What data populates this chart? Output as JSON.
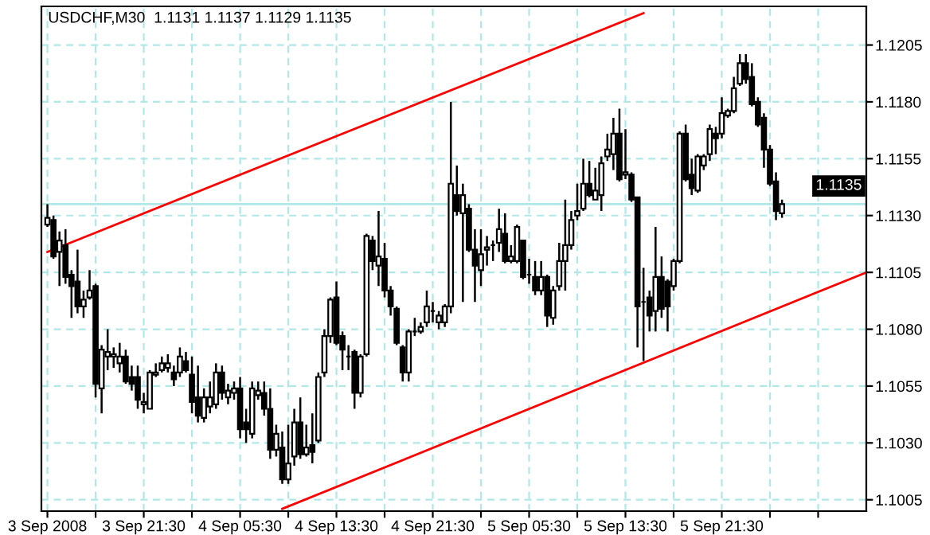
{
  "chart_data": {
    "type": "candlestick",
    "title": "USDCHF,M30  1.1131 1.1137 1.1129 1.1135",
    "x": [
      "2008-09-03T13:30",
      "2008-09-03T14:00",
      "2008-09-03T14:30",
      "2008-09-03T15:00",
      "2008-09-03T15:30",
      "2008-09-03T16:00",
      "2008-09-03T16:30",
      "2008-09-03T17:00",
      "2008-09-03T17:30",
      "2008-09-03T18:00",
      "2008-09-03T18:30",
      "2008-09-03T19:00",
      "2008-09-03T19:30",
      "2008-09-03T20:00",
      "2008-09-03T20:30",
      "2008-09-03T21:00",
      "2008-09-03T21:30",
      "2008-09-03T22:00",
      "2008-09-03T22:30",
      "2008-09-03T23:00",
      "2008-09-03T23:30",
      "2008-09-04T00:00",
      "2008-09-04T00:30",
      "2008-09-04T01:00",
      "2008-09-04T01:30",
      "2008-09-04T02:00",
      "2008-09-04T02:30",
      "2008-09-04T03:00",
      "2008-09-04T03:30",
      "2008-09-04T04:00",
      "2008-09-04T04:30",
      "2008-09-04T05:00",
      "2008-09-04T05:30",
      "2008-09-04T06:00",
      "2008-09-04T06:30",
      "2008-09-04T07:00",
      "2008-09-04T07:30",
      "2008-09-04T08:00",
      "2008-09-04T08:30",
      "2008-09-04T09:00",
      "2008-09-04T09:30",
      "2008-09-04T10:00",
      "2008-09-04T10:30",
      "2008-09-04T11:00",
      "2008-09-04T11:30",
      "2008-09-04T12:00",
      "2008-09-04T12:30",
      "2008-09-04T13:00",
      "2008-09-04T13:30",
      "2008-09-04T14:00",
      "2008-09-04T14:30",
      "2008-09-04T15:00",
      "2008-09-04T15:30",
      "2008-09-04T16:00",
      "2008-09-04T16:30",
      "2008-09-04T17:00",
      "2008-09-04T17:30",
      "2008-09-04T18:00",
      "2008-09-04T18:30",
      "2008-09-04T19:00",
      "2008-09-04T19:30",
      "2008-09-04T20:00",
      "2008-09-04T20:30",
      "2008-09-04T21:00",
      "2008-09-04T21:30",
      "2008-09-04T22:00",
      "2008-09-04T22:30",
      "2008-09-04T23:00",
      "2008-09-04T23:30",
      "2008-09-05T00:00",
      "2008-09-05T00:30",
      "2008-09-05T01:00",
      "2008-09-05T01:30",
      "2008-09-05T02:00",
      "2008-09-05T02:30",
      "2008-09-05T03:00",
      "2008-09-05T03:30",
      "2008-09-05T04:00",
      "2008-09-05T04:30",
      "2008-09-05T05:00",
      "2008-09-05T05:30",
      "2008-09-05T06:00",
      "2008-09-05T06:30",
      "2008-09-05T07:00",
      "2008-09-05T07:30",
      "2008-09-05T08:00",
      "2008-09-05T08:30",
      "2008-09-05T09:00",
      "2008-09-05T09:30",
      "2008-09-05T10:00",
      "2008-09-05T10:30",
      "2008-09-05T11:00",
      "2008-09-05T11:30",
      "2008-09-05T12:00",
      "2008-09-05T12:30",
      "2008-09-05T13:00",
      "2008-09-05T13:30",
      "2008-09-05T14:00",
      "2008-09-05T14:30",
      "2008-09-05T15:00",
      "2008-09-05T15:30",
      "2008-09-05T16:00",
      "2008-09-05T16:30",
      "2008-09-05T17:00",
      "2008-09-05T17:30",
      "2008-09-05T18:00",
      "2008-09-05T18:30",
      "2008-09-05T19:00",
      "2008-09-05T19:30",
      "2008-09-05T20:00",
      "2008-09-05T20:30",
      "2008-09-05T21:00",
      "2008-09-05T21:30",
      "2008-09-05T22:00",
      "2008-09-05T22:30",
      "2008-09-05T23:00",
      "2008-09-05T23:30",
      "2008-09-06T00:00",
      "2008-09-06T00:30",
      "2008-09-06T01:00",
      "2008-09-06T01:30",
      "2008-09-06T02:00",
      "2008-09-06T02:30"
    ],
    "ohlc": [
      [
        1.1126,
        1.1135,
        1.1125,
        1.1129
      ],
      [
        1.1128,
        1.113,
        1.1111,
        1.1112
      ],
      [
        1.1114,
        1.1123,
        1.1099,
        1.1119
      ],
      [
        1.1117,
        1.1124,
        1.11,
        1.1103
      ],
      [
        1.1104,
        1.1106,
        1.1085,
        1.1099
      ],
      [
        1.1101,
        1.1115,
        1.1087,
        1.109
      ],
      [
        1.109,
        1.1097,
        1.1085,
        1.1093
      ],
      [
        1.1094,
        1.1106,
        1.1093,
        1.1097
      ],
      [
        1.1099,
        1.11,
        1.105,
        1.1056
      ],
      [
        1.1054,
        1.1073,
        1.1043,
        1.1071
      ],
      [
        1.1068,
        1.108,
        1.1062,
        1.107
      ],
      [
        1.1068,
        1.1072,
        1.1063,
        1.1069
      ],
      [
        1.1065,
        1.1074,
        1.1061,
        1.1068
      ],
      [
        1.1068,
        1.1071,
        1.1056,
        1.1057
      ],
      [
        1.1059,
        1.1064,
        1.1053,
        1.1056
      ],
      [
        1.1059,
        1.1064,
        1.1045,
        1.1049
      ],
      [
        1.1047,
        1.1052,
        1.1043,
        1.1048
      ],
      [
        1.1045,
        1.1062,
        1.1045,
        1.1061
      ],
      [
        1.106,
        1.1065,
        1.1059,
        1.1061
      ],
      [
        1.1062,
        1.1068,
        1.1061,
        1.1065
      ],
      [
        1.1063,
        1.1069,
        1.1061,
        1.1065
      ],
      [
        1.1061,
        1.1064,
        1.1055,
        1.1058
      ],
      [
        1.1061,
        1.1072,
        1.1059,
        1.1068
      ],
      [
        1.1066,
        1.107,
        1.1061,
        1.1062
      ],
      [
        1.106,
        1.1068,
        1.1043,
        1.1048
      ],
      [
        1.105,
        1.1064,
        1.1039,
        1.1042
      ],
      [
        1.1041,
        1.1054,
        1.1039,
        1.105
      ],
      [
        1.1046,
        1.1057,
        1.1043,
        1.105
      ],
      [
        1.1047,
        1.1065,
        1.1045,
        1.1061
      ],
      [
        1.1061,
        1.1064,
        1.1049,
        1.1052
      ],
      [
        1.105,
        1.1056,
        1.1047,
        1.1053
      ],
      [
        1.1052,
        1.1057,
        1.1049,
        1.1054
      ],
      [
        1.1054,
        1.1059,
        1.1032,
        1.1036
      ],
      [
        1.1039,
        1.1045,
        1.103,
        1.1036
      ],
      [
        1.1034,
        1.1057,
        1.1032,
        1.1054
      ],
      [
        1.1051,
        1.1057,
        1.1049,
        1.1053
      ],
      [
        1.1052,
        1.1057,
        1.1042,
        1.1045
      ],
      [
        1.1045,
        1.1054,
        1.1023,
        1.1027
      ],
      [
        1.1027,
        1.1038,
        1.1024,
        1.1034
      ],
      [
        1.1028,
        1.1035,
        1.1012,
        1.1014
      ],
      [
        1.1014,
        1.1038,
        1.1012,
        1.1021
      ],
      [
        1.1024,
        1.1045,
        1.102,
        1.1039
      ],
      [
        1.1039,
        1.105,
        1.1023,
        1.1025
      ],
      [
        1.1025,
        1.1038,
        1.1024,
        1.1028
      ],
      [
        1.1029,
        1.1043,
        1.1021,
        1.1026
      ],
      [
        1.1031,
        1.1061,
        1.103,
        1.1059
      ],
      [
        1.1061,
        1.108,
        1.1059,
        1.1077
      ],
      [
        1.1077,
        1.1094,
        1.1074,
        1.1093
      ],
      [
        1.1094,
        1.1101,
        1.1073,
        1.1074
      ],
      [
        1.1077,
        1.1079,
        1.1062,
        1.1071
      ],
      [
        1.1068,
        1.1073,
        1.1062,
        1.1068
      ],
      [
        1.107,
        1.1071,
        1.1045,
        1.1052
      ],
      [
        1.1052,
        1.1069,
        1.105,
        1.1068
      ],
      [
        1.1069,
        1.1122,
        1.1068,
        1.1121
      ],
      [
        1.1119,
        1.1121,
        1.1106,
        1.111
      ],
      [
        1.1108,
        1.1132,
        1.1099,
        1.1112
      ],
      [
        1.1111,
        1.1118,
        1.1094,
        1.1097
      ],
      [
        1.1097,
        1.1099,
        1.1086,
        1.109
      ],
      [
        1.1089,
        1.109,
        1.1073,
        1.1074
      ],
      [
        1.1072,
        1.1073,
        1.1057,
        1.1061
      ],
      [
        1.1061,
        1.108,
        1.1057,
        1.1079
      ],
      [
        1.1079,
        1.1085,
        1.1077,
        1.1079
      ],
      [
        1.1079,
        1.1083,
        1.1078,
        1.1081
      ],
      [
        1.1083,
        1.1097,
        1.1081,
        1.109
      ],
      [
        1.1088,
        1.1092,
        1.1083,
        1.1088
      ],
      [
        1.1083,
        1.1088,
        1.108,
        1.1086
      ],
      [
        1.1083,
        1.1091,
        1.1081,
        1.109
      ],
      [
        1.109,
        1.118,
        1.1087,
        1.1144
      ],
      [
        1.1139,
        1.1152,
        1.113,
        1.1132
      ],
      [
        1.1131,
        1.1144,
        1.1092,
        1.1139
      ],
      [
        1.1133,
        1.1135,
        1.1114,
        1.1115
      ],
      [
        1.1115,
        1.1124,
        1.1092,
        1.1108
      ],
      [
        1.1106,
        1.1124,
        1.1099,
        1.1113
      ],
      [
        1.1115,
        1.1121,
        1.1108,
        1.1116
      ],
      [
        1.1117,
        1.1119,
        1.111,
        1.1117
      ],
      [
        1.1118,
        1.1133,
        1.1114,
        1.1124
      ],
      [
        1.1122,
        1.1131,
        1.1109,
        1.111
      ],
      [
        1.111,
        1.1117,
        1.1109,
        1.1112
      ],
      [
        1.111,
        1.1126,
        1.1109,
        1.1125
      ],
      [
        1.1119,
        1.1119,
        1.1102,
        1.1103
      ],
      [
        1.1104,
        1.1111,
        1.11,
        1.1104
      ],
      [
        1.1103,
        1.111,
        1.1095,
        1.1097
      ],
      [
        1.1097,
        1.111,
        1.1095,
        1.1103
      ],
      [
        1.1103,
        1.1104,
        1.1081,
        1.1086
      ],
      [
        1.1085,
        1.1099,
        1.1082,
        1.1097
      ],
      [
        1.1099,
        1.1118,
        1.1097,
        1.111
      ],
      [
        1.111,
        1.1137,
        1.1097,
        1.1117
      ],
      [
        1.1117,
        1.1132,
        1.1115,
        1.1128
      ],
      [
        1.113,
        1.1144,
        1.1128,
        1.1132
      ],
      [
        1.1133,
        1.1155,
        1.1132,
        1.1144
      ],
      [
        1.1144,
        1.1154,
        1.1138,
        1.1139
      ],
      [
        1.1137,
        1.1151,
        1.1137,
        1.1141
      ],
      [
        1.1139,
        1.1156,
        1.1132,
        1.1153
      ],
      [
        1.1156,
        1.1166,
        1.1154,
        1.1159
      ],
      [
        1.1157,
        1.1173,
        1.115,
        1.1166
      ],
      [
        1.1166,
        1.1177,
        1.1145,
        1.1146
      ],
      [
        1.1148,
        1.1168,
        1.1146,
        1.1149
      ],
      [
        1.1148,
        1.1149,
        1.1136,
        1.1137
      ],
      [
        1.1138,
        1.1138,
        1.1072,
        1.109
      ],
      [
        1.1092,
        1.1107,
        1.1066,
        1.1092
      ],
      [
        1.1094,
        1.1097,
        1.1079,
        1.1086
      ],
      [
        1.1088,
        1.1125,
        1.1079,
        1.1103
      ],
      [
        1.1103,
        1.1112,
        1.1085,
        1.1089
      ],
      [
        1.1101,
        1.1102,
        1.1079,
        1.109
      ],
      [
        1.1099,
        1.1111,
        1.1097,
        1.111
      ],
      [
        1.111,
        1.1167,
        1.1109,
        1.1166
      ],
      [
        1.1166,
        1.117,
        1.1145,
        1.1146
      ],
      [
        1.1148,
        1.1155,
        1.1139,
        1.1142
      ],
      [
        1.1141,
        1.1157,
        1.114,
        1.1156
      ],
      [
        1.1152,
        1.1157,
        1.115,
        1.1156
      ],
      [
        1.1157,
        1.117,
        1.1154,
        1.1168
      ],
      [
        1.1166,
        1.1169,
        1.1157,
        1.1164
      ],
      [
        1.1166,
        1.1182,
        1.1164,
        1.1175
      ],
      [
        1.1174,
        1.1177,
        1.1173,
        1.1176
      ],
      [
        1.1176,
        1.1191,
        1.1175,
        1.1186
      ],
      [
        1.1188,
        1.1201,
        1.1187,
        1.1197
      ],
      [
        1.1197,
        1.1201,
        1.1188,
        1.119
      ],
      [
        1.1191,
        1.1197,
        1.1178,
        1.1179
      ],
      [
        1.118,
        1.1182,
        1.1169,
        1.117
      ],
      [
        1.1173,
        1.1175,
        1.1151,
        1.1159
      ],
      [
        1.1159,
        1.1161,
        1.1143,
        1.1144
      ],
      [
        1.1145,
        1.1149,
        1.1128,
        1.1132
      ],
      [
        1.1131,
        1.1137,
        1.1129,
        1.1135
      ]
    ],
    "series": [
      {
        "type": "line",
        "x": [
          "2008-09-03T13:30",
          "2008-09-05T15:00"
        ],
        "values": [
          1.1114,
          1.1219
        ],
        "color": "#ff0000"
      },
      {
        "type": "line",
        "x": [
          "2008-09-04T09:00",
          "2008-09-06T09:30"
        ],
        "values": [
          1.1001,
          1.1105
        ],
        "color": "#ff0000"
      }
    ],
    "xlim": [
      "2008-09-03T13:00",
      "2008-09-06T09:30"
    ],
    "ylim": [
      1.1,
      1.1222
    ],
    "xticks": [
      {
        "value": "2008-09-03T13:30",
        "label": "3 Sep 2008"
      },
      {
        "value": "2008-09-03T17:30",
        "label": null
      },
      {
        "value": "2008-09-03T21:30",
        "label": "3 Sep 21:30"
      },
      {
        "value": "2008-09-04T01:30",
        "label": null
      },
      {
        "value": "2008-09-04T05:30",
        "label": "4 Sep 05:30"
      },
      {
        "value": "2008-09-04T09:30",
        "label": null
      },
      {
        "value": "2008-09-04T13:30",
        "label": "4 Sep 13:30"
      },
      {
        "value": "2008-09-04T17:30",
        "label": null
      },
      {
        "value": "2008-09-04T21:30",
        "label": "4 Sep 21:30"
      },
      {
        "value": "2008-09-05T01:30",
        "label": null
      },
      {
        "value": "2008-09-05T05:30",
        "label": "5 Sep 05:30"
      },
      {
        "value": "2008-09-05T09:30",
        "label": null
      },
      {
        "value": "2008-09-05T13:30",
        "label": "5 Sep 13:30"
      },
      {
        "value": "2008-09-05T17:30",
        "label": null
      },
      {
        "value": "2008-09-05T21:30",
        "label": "5 Sep 21:30"
      },
      {
        "value": "2008-09-06T01:30",
        "label": null
      },
      {
        "value": "2008-09-06T05:30",
        "label": null
      }
    ],
    "yticks": [
      1.1005,
      {
        "value": 1.103,
        "label": "1.1030"
      },
      1.1055,
      {
        "value": 1.108,
        "label": "1.1080"
      },
      1.1105,
      {
        "value": 1.113,
        "label": "1.1130"
      },
      1.1155,
      {
        "value": 1.118,
        "label": "1.1180"
      },
      1.1205
    ],
    "ref_lines": [
      {
        "axis": "y",
        "value": 1.1135,
        "label": "1.1135",
        "color": "#b0e8e8"
      }
    ],
    "grid": true
  }
}
